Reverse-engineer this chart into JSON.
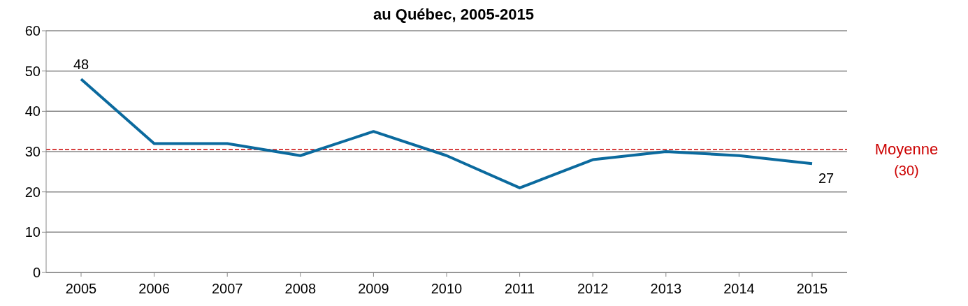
{
  "chart_data": {
    "type": "line",
    "title": "au Québec, 2005-2015",
    "categories": [
      "2005",
      "2006",
      "2007",
      "2008",
      "2009",
      "2010",
      "2011",
      "2012",
      "2013",
      "2014",
      "2015"
    ],
    "series": [
      {
        "color": "#0b6a9e",
        "values": [
          48,
          32,
          32,
          29,
          35,
          29,
          21,
          28,
          30,
          29,
          27
        ],
        "value_labels": [
          "48",
          null,
          null,
          null,
          null,
          null,
          null,
          null,
          null,
          null,
          "27"
        ]
      }
    ],
    "ylim": [
      0,
      60
    ],
    "yticks": [
      0,
      10,
      20,
      30,
      40,
      50,
      60
    ],
    "grid": "y",
    "legend": false,
    "marker": "none",
    "line_style": "solid",
    "ref_lines": [
      {
        "axis": "y",
        "value": 30.5,
        "label": "Moyenne\n(30)",
        "color": "#cc0000",
        "line_style": "dashed"
      }
    ]
  }
}
